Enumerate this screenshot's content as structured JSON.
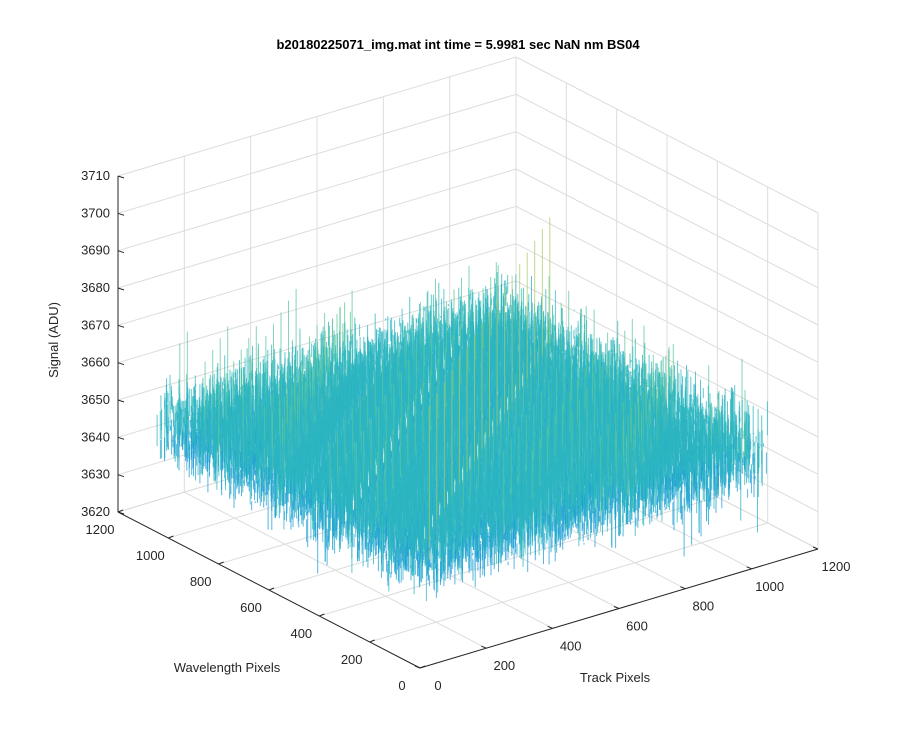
{
  "chart_data": {
    "type": "surface",
    "title": "b20180225071_img.mat int time = 5.9981 sec  NaN nm BS04",
    "xlabel": "Track Pixels",
    "ylabel": "Wavelength Pixels",
    "zlabel": "Signal (ADU)",
    "xlim": [
      0,
      1200
    ],
    "ylim": [
      0,
      1200
    ],
    "zlim": [
      3620,
      3710
    ],
    "x_ticks": [
      "0",
      "200",
      "400",
      "600",
      "800",
      "1000",
      "1200"
    ],
    "y_ticks": [
      "0",
      "200",
      "400",
      "600",
      "800",
      "1000",
      "1200"
    ],
    "z_ticks": [
      "3620",
      "3630",
      "3640",
      "3650",
      "3660",
      "3670",
      "3680",
      "3690",
      "3700",
      "3710"
    ],
    "surface": {
      "x_extent": [
        0,
        1040
      ],
      "y_extent": [
        0,
        1040
      ],
      "mean_signal": 3650,
      "noise_range": [
        3625,
        3705
      ]
    },
    "grid": true,
    "colormap": [
      "#0072bd",
      "#1f9ed8",
      "#2cb5c0",
      "#5ec79a",
      "#a8cb6a",
      "#e3c046"
    ]
  }
}
